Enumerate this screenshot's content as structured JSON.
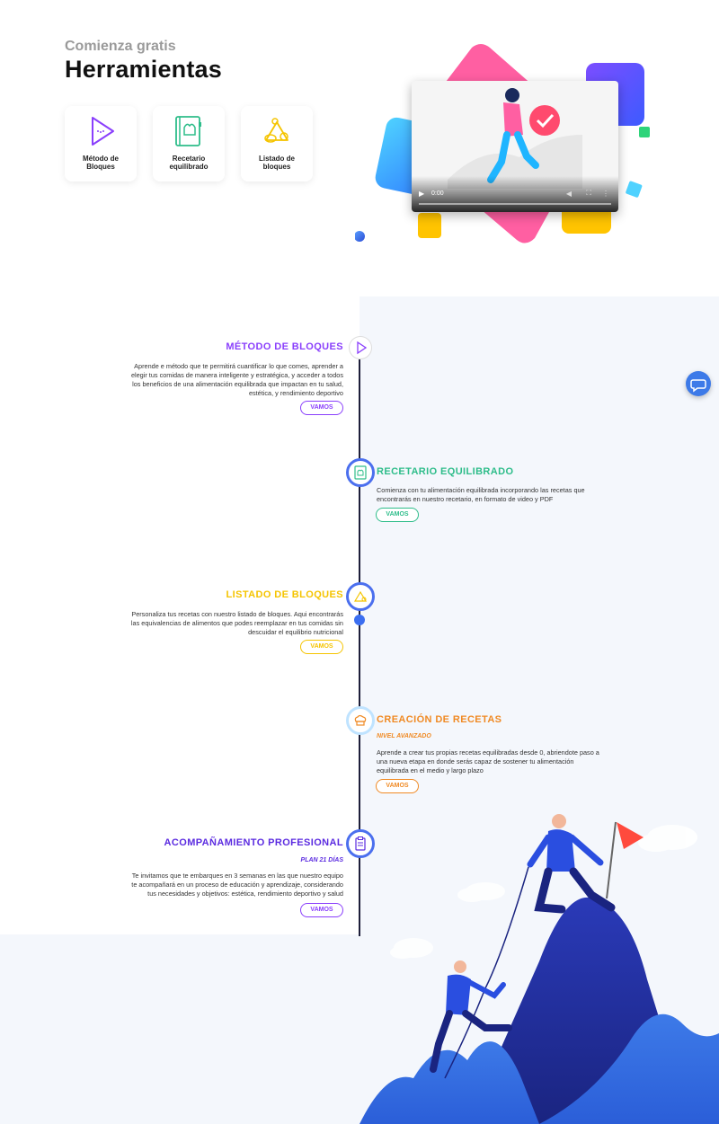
{
  "header": {
    "eyebrow": "Comienza gratis",
    "title": "Herramientas"
  },
  "tools": [
    {
      "label": "Método de\nBloques",
      "icon": "play-icon"
    },
    {
      "label": "Recetario\nequilibrado",
      "icon": "recipe-book-icon"
    },
    {
      "label": "Listado de\nbloques",
      "icon": "food-blocks-icon"
    }
  ],
  "video": {
    "time": "0:00"
  },
  "timeline": [
    {
      "title": "MÉTODO DE BLOQUES",
      "subtitle": "",
      "description": "Aprende e método que te permitirá cuantificar lo que comes, aprender a elegir tus comidas de manera inteligente y estratégica, y acceder a todos los beneficios de una alimentación equilibrada que impactan en tu salud, estética, y rendimiento deportivo",
      "button": "VAMOS",
      "color": "#8a3ffc"
    },
    {
      "title": "RECETARIO EQUILIBRADO",
      "subtitle": "",
      "description": "Comienza con tu alimentación equilibrada incorporando las recetas que encontrarás en nuestro recetario, en formato de video y PDF",
      "button": "VAMOS",
      "color": "#2ebd8a"
    },
    {
      "title": "LISTADO DE BLOQUES",
      "subtitle": "",
      "description": "Personaliza tus recetas con nuestro listado de bloques. Aqui encontrarás las equivalencias de alimentos que podes reemplazar en tus comidas sin descuidar el equilibrio nutricional",
      "button": "VAMOS",
      "color": "#f5c400"
    },
    {
      "title": "CREACIÓN DE RECETAS",
      "subtitle": "NIVEL AVANZADO",
      "description": "Aprende a crear tus propias recetas equilibradas desde 0, abriendote paso a una nueva etapa en donde serás capaz de sostener tu alimentación equilibrada en el medio y largo plazo",
      "button": "VAMOS",
      "color": "#f08a24"
    },
    {
      "title": "ACOMPAÑAMIENTO PROFESIONAL",
      "subtitle": "PLAN 21 DÍAS",
      "description": "Te invitamos que te embarques en 3 semanas en las que nuestro equipo te acompañará en un proceso de educación y aprendizaje, considerando tus necesidades y objetivos: estética, rendimiento deportivo y salud",
      "button": "VAMOS",
      "color": "#5b2be0"
    }
  ],
  "colors": {
    "purple": "#8a3ffc",
    "green": "#2ebd8a",
    "yellow": "#f5c400",
    "orange": "#f08a24",
    "indigo": "#5b2be0",
    "blue": "#3d7ae8"
  },
  "icons": {
    "chat": "chat-bubble-icon"
  }
}
